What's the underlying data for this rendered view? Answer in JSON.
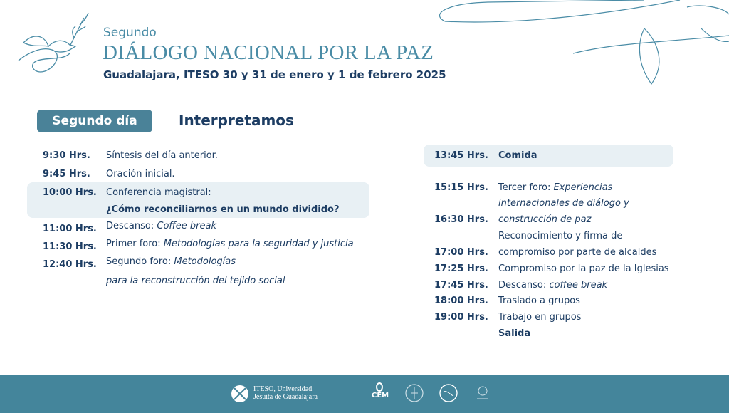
{
  "header": {
    "subtitle": "Segundo",
    "title": "DIÁLOGO NACIONAL POR LA PAZ",
    "location": "Guadalajara, ITESO 30 y 31 de enero y 1 de febrero 2025"
  },
  "section": {
    "day_label": "Segundo día",
    "theme": "Interpretamos"
  },
  "left": [
    {
      "time": "9:30 Hrs.",
      "text": "Síntesis del día anterior."
    },
    {
      "time": "9:45 Hrs.",
      "text": "Oración inicial."
    },
    {
      "time": "10:00 Hrs.",
      "text": "Conferencia magistral:",
      "text2": "¿Cómo reconciliarnos en un mundo dividido?"
    },
    {
      "time": "11:00 Hrs.",
      "text": "Descanso: ",
      "italic": "Coffee break"
    },
    {
      "time": "11:30 Hrs.",
      "text": "Primer foro: ",
      "italic": "Metodologías para la seguridad y justicia"
    },
    {
      "time": "12:40 Hrs.",
      "text": "Segundo foro: ",
      "italic": "Metodologías",
      "italic2": "para la reconstrucción del tejido social"
    }
  ],
  "right": {
    "lunch": {
      "time": "13:45 Hrs.",
      "text": "Comida"
    },
    "foro3": {
      "time": "15:15 Hrs.",
      "text": "Tercer foro: ",
      "italic": "Experiencias",
      "italic2": "internacionales de diálogo y",
      "italic3": "construcción de paz"
    },
    "t1630": "16:30 Hrs.",
    "reconocimiento": "Reconocimiento y firma de",
    "t1700": "17:00 Hrs.",
    "compromiso_alcaldes": "compromiso por parte de alcaldes",
    "items": [
      {
        "time": "17:25 Hrs.",
        "text": "Compromiso por la paz de la Iglesias"
      },
      {
        "time": "17:45 Hrs.",
        "text": "Descanso: ",
        "italic": "coffee break"
      },
      {
        "time": "18:00 Hrs.",
        "text": "Traslado a grupos"
      },
      {
        "time": "19:00 Hrs.",
        "text": "Trabajo en grupos"
      }
    ],
    "end": "Salida"
  },
  "footer": {
    "iteso_line1": "ITESO, Universidad",
    "iteso_line2": "Jesuita de Guadalajara",
    "cem": "CEM"
  },
  "colors": {
    "accent": "#4a8298",
    "navy": "#1d3d63",
    "footer": "#44859b",
    "highlight": "#e8f0f4"
  }
}
